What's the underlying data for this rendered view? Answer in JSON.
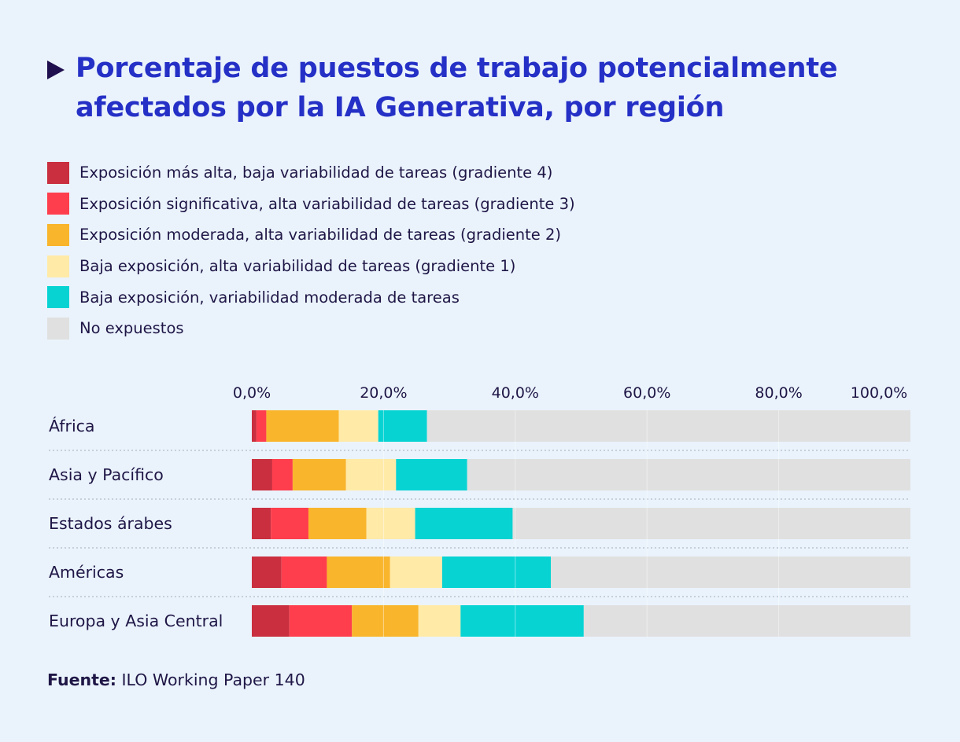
{
  "title": "Porcentaje de puestos de trabajo potencialmente afectados por la IA Generativa, por región",
  "source": {
    "label": "Fuente:",
    "text": "ILO Working Paper 140"
  },
  "chart_data": {
    "type": "bar",
    "orientation": "horizontal",
    "stacked": true,
    "categories": [
      "África",
      "Asia y Pacífico",
      "Estados árabes",
      "Américas",
      "Europa y Asia Central"
    ],
    "x_ticks": [
      "0,0%",
      "20,0%",
      "40,0%",
      "60,0%",
      "80,0%",
      "100,0%"
    ],
    "xlim": [
      0,
      100
    ],
    "grid": true,
    "legend_position": "top-left",
    "series": [
      {
        "name": "Exposición más alta, baja variabilidad de tareas (gradiente 4)",
        "color": "#c92f3f",
        "values": [
          0.7,
          3.1,
          2.9,
          4.5,
          5.7
        ]
      },
      {
        "name": "Exposición significativa, alta variabilidad de tareas (gradiente 3)",
        "color": "#ff3e4d",
        "values": [
          1.5,
          3.1,
          5.7,
          6.9,
          9.5
        ]
      },
      {
        "name": "Exposición moderada, alta variabilidad de tareas (gradiente 2)",
        "color": "#f9b52c",
        "values": [
          11.0,
          8.1,
          8.8,
          9.6,
          10.1
        ]
      },
      {
        "name": "Baja exposición, alta variabilidad de tareas (gradiente 1)",
        "color": "#ffeaa8",
        "values": [
          6.0,
          7.6,
          7.4,
          7.9,
          6.4
        ]
      },
      {
        "name": "Baja exposición, variabilidad moderada de tareas",
        "color": "#07d3d3",
        "values": [
          7.4,
          10.8,
          14.8,
          16.5,
          18.7
        ]
      },
      {
        "name": "No expuestos",
        "color": "#e0e0e0",
        "values": [
          73.4,
          67.3,
          60.4,
          54.6,
          49.6
        ]
      }
    ]
  }
}
